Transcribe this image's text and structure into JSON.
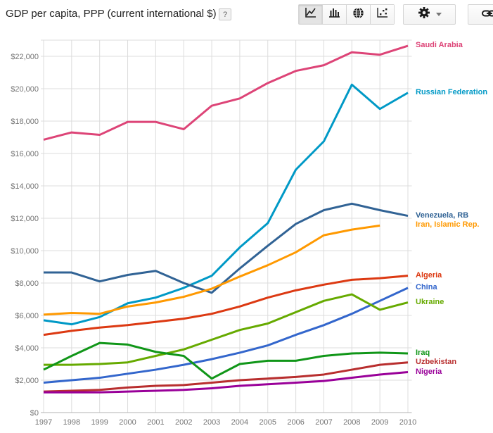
{
  "header": {
    "title": "GDP per capita, PPP (current international $)",
    "help_label": "?"
  },
  "toolbar": {
    "chart_type_buttons": [
      {
        "label": "line-chart",
        "icon": "line-chart-icon",
        "active": true
      },
      {
        "label": "bar-chart",
        "icon": "bar-chart-icon",
        "active": false
      },
      {
        "label": "map",
        "icon": "globe-icon",
        "active": false
      },
      {
        "label": "scatter-chart",
        "icon": "scatter-icon",
        "active": false
      }
    ],
    "settings_icon": "gear-icon",
    "link_icon": "link-icon"
  },
  "chart_data": {
    "type": "line",
    "title": "GDP per capita, PPP (current international $)",
    "x": [
      "1997",
      "1998",
      "1999",
      "2000",
      "2001",
      "2002",
      "2003",
      "2004",
      "2005",
      "2006",
      "2007",
      "2008",
      "2009",
      "2010"
    ],
    "y_ticks": [
      "$0",
      "$2,000",
      "$4,000",
      "$6,000",
      "$8,000",
      "$10,000",
      "$12,000",
      "$14,000",
      "$16,000",
      "$18,000",
      "$20,000",
      "$22,000"
    ],
    "ylim": [
      0,
      23000
    ],
    "grid": true,
    "legend_position": "right",
    "axis_label_color": "#757575",
    "grid_color": "#dcdcdc",
    "series": [
      {
        "name": "Saudi Arabia",
        "color": "#DD4477",
        "values": [
          16850,
          17300,
          17150,
          17950,
          17950,
          17500,
          18950,
          19400,
          20350,
          21100,
          21450,
          22250,
          22100,
          22650
        ]
      },
      {
        "name": "Russian Federation",
        "color": "#0099C6",
        "values": [
          5700,
          5450,
          5900,
          6750,
          7100,
          7700,
          8450,
          10200,
          11700,
          15000,
          16750,
          20250,
          18750,
          19750
        ]
      },
      {
        "name": "Venezuela, RB",
        "color": "#316395",
        "values": [
          8650,
          8650,
          8100,
          8500,
          8750,
          8000,
          7400,
          8900,
          10300,
          11650,
          12500,
          12900,
          12500,
          12150
        ]
      },
      {
        "name": "Iran, Islamic Rep.",
        "color": "#FF9900",
        "values": [
          6050,
          6150,
          6100,
          6550,
          6800,
          7150,
          7650,
          8400,
          9100,
          9900,
          10950,
          11300,
          11550,
          null
        ]
      },
      {
        "name": "Algeria",
        "color": "#DC3912",
        "values": [
          4800,
          5050,
          5250,
          5400,
          5600,
          5800,
          6100,
          6550,
          7100,
          7550,
          7900,
          8200,
          8300,
          8450
        ]
      },
      {
        "name": "China",
        "color": "#3366CC",
        "values": [
          1850,
          2000,
          2150,
          2400,
          2650,
          2950,
          3300,
          3700,
          4150,
          4800,
          5400,
          6100,
          6900,
          7700
        ]
      },
      {
        "name": "Ukraine",
        "color": "#66AA00",
        "values": [
          2950,
          2950,
          3000,
          3100,
          3500,
          3900,
          4500,
          5100,
          5500,
          6200,
          6900,
          7300,
          6350,
          6800
        ]
      },
      {
        "name": "Iraq",
        "color": "#109618",
        "values": [
          2650,
          3500,
          4300,
          4200,
          3750,
          3500,
          2100,
          3000,
          3200,
          3200,
          3500,
          3650,
          3700,
          3650
        ]
      },
      {
        "name": "Uzbekistan",
        "color": "#B82E2E",
        "values": [
          1300,
          1350,
          1400,
          1550,
          1650,
          1700,
          1850,
          2000,
          2100,
          2200,
          2350,
          2650,
          2950,
          3100
        ]
      },
      {
        "name": "Nigeria",
        "color": "#990099",
        "values": [
          1250,
          1250,
          1250,
          1300,
          1350,
          1400,
          1500,
          1650,
          1750,
          1850,
          1950,
          2150,
          2350,
          2500
        ]
      }
    ]
  }
}
